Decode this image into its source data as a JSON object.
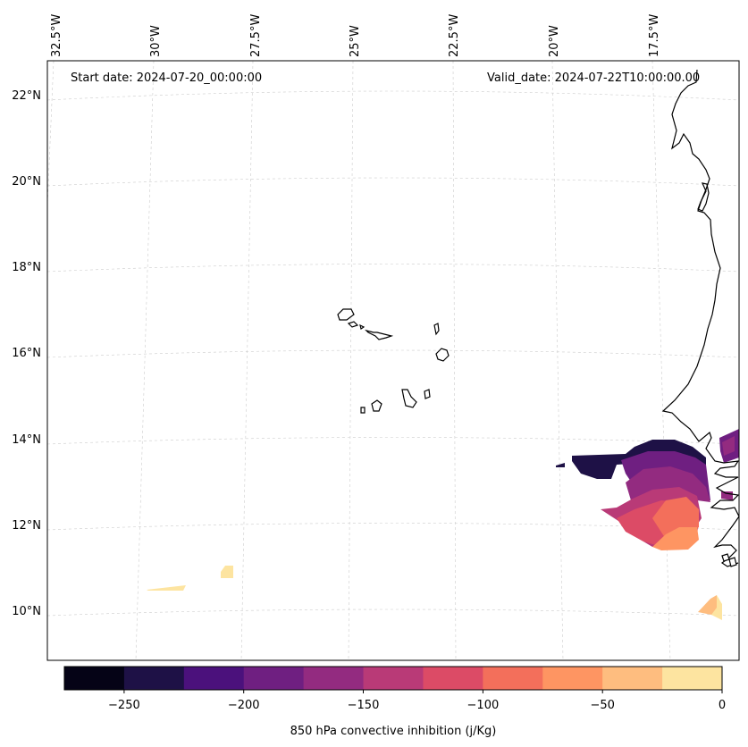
{
  "header": {
    "start_date": "Start date: 2024-07-20_00:00:00",
    "valid_date": "Valid_date: 2024-07-22T10:00:00.00"
  },
  "axes": {
    "lon_labels": [
      "32.5°W",
      "30°W",
      "27.5°W",
      "25°W",
      "22.5°W",
      "20°W",
      "17.5°W"
    ],
    "lat_labels": [
      "22°N",
      "20°N",
      "18°N",
      "16°N",
      "14°N",
      "12°N",
      "10°N"
    ]
  },
  "colorbar": {
    "label": "850 hPa convective inhibition (j/Kg)",
    "tick_labels": [
      "−250",
      "−200",
      "−150",
      "−100",
      "−50",
      "0"
    ],
    "levels": [
      -275,
      -250,
      -225,
      -200,
      -175,
      -150,
      -125,
      -100,
      -75,
      -50,
      -25,
      0
    ],
    "colors": [
      "#050316",
      "#1e1146",
      "#4b117c",
      "#6f1f81",
      "#932b80",
      "#b93a77",
      "#dc4b66",
      "#f36f5b",
      "#fe9562",
      "#febd7f",
      "#fde4a0"
    ]
  },
  "map": {
    "projection": "polar-stereographic style conic grid",
    "extent": {
      "lon": [
        -32.8,
        -15.0
      ],
      "lat": [
        9.0,
        22.6
      ]
    },
    "gridlines": "dashed light grey",
    "field_variable": "850 hPa convective inhibition",
    "field_units": "j/Kg"
  }
}
